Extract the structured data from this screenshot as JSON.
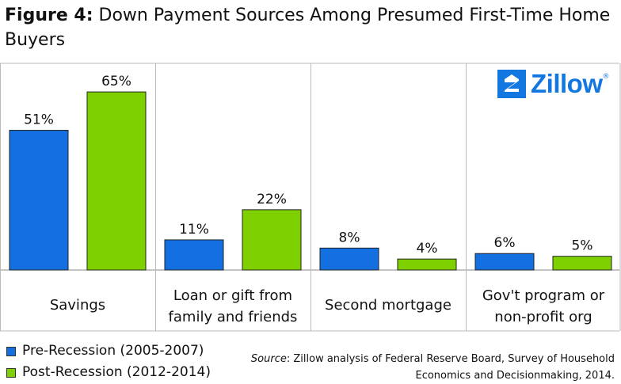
{
  "title": {
    "prefix": "Figure 4:",
    "text": "Down Payment Sources Among Presumed First-Time Home Buyers"
  },
  "logo": {
    "text": "Zillow",
    "mark": "®"
  },
  "chart_data": {
    "type": "bar",
    "title": "Figure 4: Down Payment Sources Among Presumed First-Time Home Buyers",
    "categories": [
      [
        "Savings"
      ],
      [
        "Loan or gift from",
        "family and friends"
      ],
      [
        "Second mortgage"
      ],
      [
        "Gov't program or",
        "non-profit org"
      ]
    ],
    "series": [
      {
        "name": "Pre-Recession (2005-2007)",
        "color": "#1470e0",
        "values": [
          51,
          11,
          8,
          6
        ],
        "labels": [
          "51%",
          "11%",
          "8%",
          "6%"
        ]
      },
      {
        "name": "Post-Recession (2012-2014)",
        "color": "#7fd000",
        "values": [
          65,
          22,
          4,
          5
        ],
        "labels": [
          "65%",
          "22%",
          "4%",
          "5%"
        ]
      }
    ],
    "ylim": [
      0,
      80
    ],
    "xlabel": "",
    "ylabel": "",
    "grid": false,
    "legend": "bottom-left"
  },
  "legend": {
    "items": [
      {
        "label": "Pre-Recession (2005-2007)",
        "color": "#1470e0"
      },
      {
        "label": "Post-Recession (2012-2014)",
        "color": "#7fd000"
      }
    ]
  },
  "source": {
    "prefix": "Source",
    "text": ": Zillow analysis of Federal Reserve Board, Survey of Household Economics and Decisionmaking, 2014."
  }
}
